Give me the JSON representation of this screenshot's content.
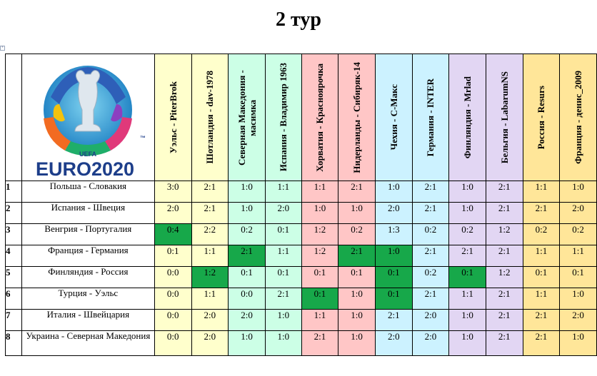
{
  "title": "2 тур",
  "colors": {
    "hit": "#17a84a",
    "column_bg": [
      "#ffffcc",
      "#ffffcc",
      "#ccffe6",
      "#ccffe6",
      "#ffc6c6",
      "#ffc6c6",
      "#ccf2ff",
      "#ccf2ff",
      "#e2d6f3",
      "#e2d6f3",
      "#ffe699",
      "#ffe699"
    ]
  },
  "logo": {
    "line1": "UEFA",
    "line2": "EURO2020",
    "tm": "™"
  },
  "players": [
    "Уэльс - PiterBrok",
    "Шотландия - dav-1978",
    "Северная Македония - масимка",
    "Испания - Владимир 1963",
    "Хорватия - Красноярочка",
    "Нидерланды - Сибиряк-14",
    "Чехия - С-Макс",
    "Германия - INTER",
    "Финляндия - Mrlad",
    "Бельгия - LabarumNS",
    "Россия - Resurs",
    "Франция - денис_2009"
  ],
  "rows": [
    {
      "num": "1",
      "match": "Польша - Словакия",
      "scores": [
        "3:0",
        "2:1",
        "1:0",
        "1:1",
        "1:1",
        "2:1",
        "1:0",
        "2:1",
        "1:0",
        "2:1",
        "1:1",
        "1:0"
      ],
      "hits": []
    },
    {
      "num": "2",
      "match": "Испания - Швеция",
      "scores": [
        "2:0",
        "2:1",
        "1:0",
        "2:0",
        "1:0",
        "1:0",
        "2:0",
        "2:1",
        "1:0",
        "2:1",
        "2:1",
        "2:0"
      ],
      "hits": []
    },
    {
      "num": "3",
      "match": "Венгрия - Португалия",
      "scores": [
        "0:4",
        "2:2",
        "0:2",
        "0:1",
        "1:2",
        "0:2",
        "1:3",
        "0:2",
        "0:2",
        "1:2",
        "0:2",
        "0:2"
      ],
      "hits": [
        0
      ]
    },
    {
      "num": "4",
      "match": "Франция - Германия",
      "scores": [
        "0:1",
        "1:1",
        "2:1",
        "1:1",
        "1:2",
        "2:1",
        "1:0",
        "2:1",
        "2:1",
        "2:1",
        "1:1",
        "1:1"
      ],
      "hits": [
        2,
        5,
        6
      ]
    },
    {
      "num": "5",
      "match": "Финляндия - Россия",
      "scores": [
        "0:0",
        "1:2",
        "0:1",
        "0:1",
        "0:1",
        "0:1",
        "0:1",
        "0:2",
        "0:1",
        "1:2",
        "0:1",
        "0:1"
      ],
      "hits": [
        1,
        6,
        8
      ]
    },
    {
      "num": "6",
      "match": "Турция - Уэльс",
      "scores": [
        "0:0",
        "1:1",
        "0:0",
        "2:1",
        "0:1",
        "1:0",
        "0:1",
        "2:1",
        "1:1",
        "2:1",
        "1:1",
        "1:0"
      ],
      "hits": [
        4,
        6
      ]
    },
    {
      "num": "7",
      "match": "Италия - Швейцария",
      "scores": [
        "0:0",
        "2:0",
        "2:0",
        "1:0",
        "1:1",
        "1:0",
        "2:1",
        "2:0",
        "1:0",
        "2:1",
        "2:1",
        "2:0"
      ],
      "hits": []
    },
    {
      "num": "8",
      "match": "Украина - Северная Македония",
      "scores": [
        "0:0",
        "2:0",
        "1:0",
        "1:0",
        "2:1",
        "1:0",
        "2:0",
        "2:0",
        "1:0",
        "2:1",
        "2:1",
        "1:0"
      ],
      "hits": []
    }
  ]
}
